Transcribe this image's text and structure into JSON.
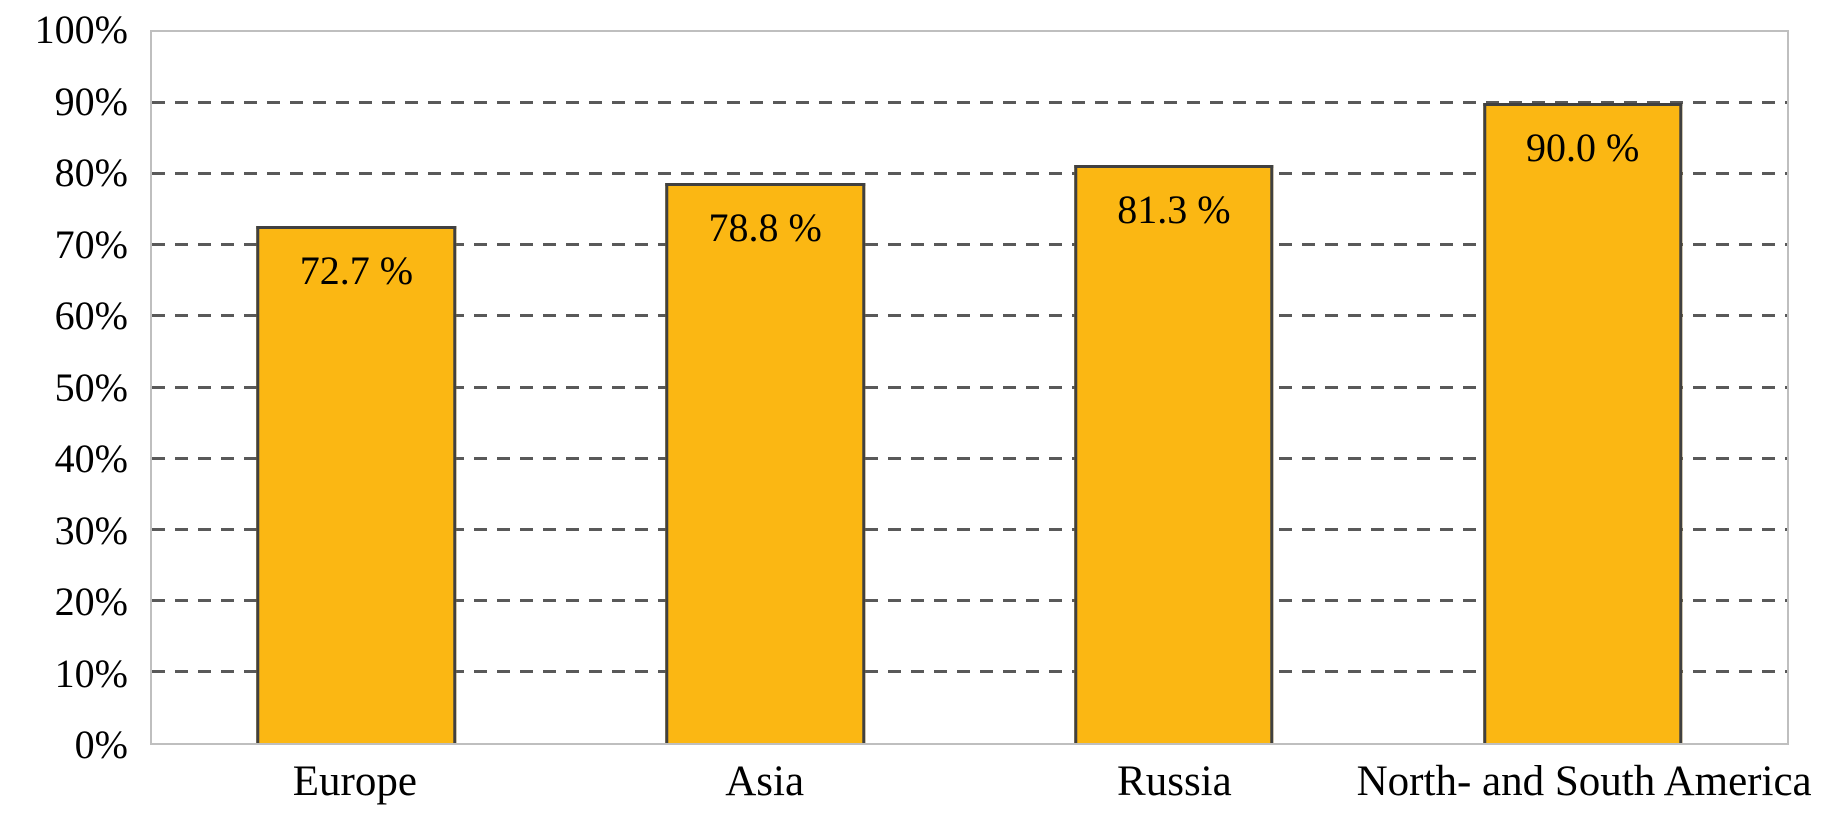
{
  "chart_data": {
    "type": "bar",
    "categories": [
      "Europe",
      "Asia",
      "Russia",
      "North- and South America"
    ],
    "values": [
      72.7,
      78.8,
      81.3,
      90.0
    ],
    "value_labels": [
      "72.7 %",
      "78.8 %",
      "81.3 %",
      "90.0 %"
    ],
    "title": "",
    "xlabel": "",
    "ylabel": "",
    "ylim": [
      0,
      100
    ],
    "yticks": [
      0,
      10,
      20,
      30,
      40,
      50,
      60,
      70,
      80,
      90,
      100
    ],
    "ytick_labels": [
      "0%",
      "10%",
      "20%",
      "30%",
      "40%",
      "50%",
      "60%",
      "70%",
      "80%",
      "90%",
      "100%"
    ],
    "grid": "horizontal-dashed",
    "legend": "none",
    "colors": {
      "bar_fill": "#FBB713",
      "bar_border": "#404040",
      "gridline": "#595959",
      "axis_border": "#bfbfbf",
      "text": "#000000"
    }
  }
}
